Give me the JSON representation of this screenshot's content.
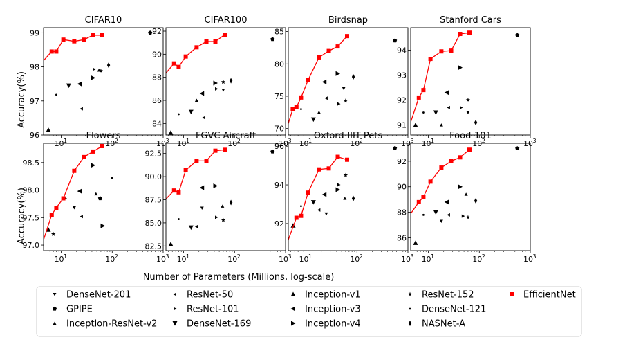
{
  "figure": {
    "xlabel": "Number of Parameters (Millions, log-scale)",
    "ylabel": "Accuracy(%)"
  },
  "legend": [
    {
      "name": "DenseNet-201",
      "marker": "tri-down"
    },
    {
      "name": "GPIPE",
      "marker": "pentagon"
    },
    {
      "name": "Inception-ResNet-v2",
      "marker": "tri-up"
    },
    {
      "name": "ResNet-50",
      "marker": "tri-left"
    },
    {
      "name": "ResNet-101",
      "marker": "tri-right"
    },
    {
      "name": "DenseNet-169",
      "marker": "triangle-down"
    },
    {
      "name": "Inception-v1",
      "marker": "triangle-up"
    },
    {
      "name": "Inception-v3",
      "marker": "triangle-left"
    },
    {
      "name": "Inception-v4",
      "marker": "triangle-right"
    },
    {
      "name": "ResNet-152",
      "marker": "star"
    },
    {
      "name": "DenseNet-121",
      "marker": "point"
    },
    {
      "name": "NASNet-A",
      "marker": "thin-diamond"
    },
    {
      "name": "EfficientNet",
      "marker": "square",
      "color": "#ff0000"
    }
  ],
  "chart_data": [
    {
      "type": "scatter",
      "title": "CIFAR10",
      "xscale": "log",
      "xlim": [
        4.5,
        1000
      ],
      "ylim": [
        96.0,
        99.15
      ],
      "xticks": [
        {
          "v": 10,
          "l": "10"
        },
        {
          "v": 100,
          "l": "10"
        },
        {
          "v": 1000,
          "l": "10"
        }
      ],
      "xtick_exp": [
        "1",
        "2",
        "3"
      ],
      "yticks": [
        {
          "v": 96,
          "l": "96"
        },
        {
          "v": 97,
          "l": "97"
        },
        {
          "v": 98,
          "l": "98"
        },
        {
          "v": 99,
          "l": "99"
        }
      ],
      "efficientnet": [
        [
          4.0,
          98.1
        ],
        [
          6.5,
          98.45
        ],
        [
          8.0,
          98.45
        ],
        [
          11.0,
          98.8
        ],
        [
          18.0,
          98.75
        ],
        [
          28.0,
          98.8
        ],
        [
          42.0,
          98.93
        ],
        [
          64.0,
          98.93
        ]
      ],
      "points": [
        {
          "model": "Inception-v1",
          "x": 5.6,
          "y": 96.15
        },
        {
          "model": "DenseNet-121",
          "x": 8.0,
          "y": 97.18
        },
        {
          "model": "DenseNet-169",
          "x": 14.0,
          "y": 97.45
        },
        {
          "model": "Inception-v3",
          "x": 23.0,
          "y": 97.5
        },
        {
          "model": "ResNet-50",
          "x": 25.0,
          "y": 96.77
        },
        {
          "model": "ResNet-101",
          "x": 44.0,
          "y": 97.93
        },
        {
          "model": "Inception-ResNet-v2",
          "x": 55.0,
          "y": 97.9
        },
        {
          "model": "ResNet-152",
          "x": 60.0,
          "y": 97.88
        },
        {
          "model": "Inception-v4",
          "x": 42.0,
          "y": 97.68
        },
        {
          "model": "NASNet-A",
          "x": 85.0,
          "y": 98.05
        },
        {
          "model": "GPIPE",
          "x": 556.0,
          "y": 99.0
        }
      ]
    },
    {
      "type": "scatter",
      "title": "CIFAR100",
      "xscale": "log",
      "xlim": [
        4.5,
        1000
      ],
      "ylim": [
        83.0,
        92.3
      ],
      "xticks": [
        {
          "v": 10,
          "l": "10"
        },
        {
          "v": 100,
          "l": "10"
        },
        {
          "v": 1000,
          "l": "10"
        }
      ],
      "xtick_exp": [
        "1",
        "2",
        "3"
      ],
      "yticks": [
        {
          "v": 84,
          "l": "84"
        },
        {
          "v": 86,
          "l": "86"
        },
        {
          "v": 88,
          "l": "88"
        },
        {
          "v": 90,
          "l": "90"
        },
        {
          "v": 92,
          "l": "92"
        }
      ],
      "efficientnet": [
        [
          4.0,
          88.1
        ],
        [
          6.5,
          89.2
        ],
        [
          8.0,
          88.9
        ],
        [
          11.0,
          89.8
        ],
        [
          18.0,
          90.6
        ],
        [
          28.0,
          91.1
        ],
        [
          42.0,
          91.1
        ],
        [
          64.0,
          91.7
        ]
      ],
      "points": [
        {
          "model": "Inception-v1",
          "x": 5.6,
          "y": 83.2
        },
        {
          "model": "DenseNet-121",
          "x": 8.0,
          "y": 84.8
        },
        {
          "model": "DenseNet-169",
          "x": 14.0,
          "y": 85.0
        },
        {
          "model": "Inception-ResNet-v2",
          "x": 18.0,
          "y": 86.0
        },
        {
          "model": "Inception-v3",
          "x": 23.0,
          "y": 86.6
        },
        {
          "model": "ResNet-50",
          "x": 25.0,
          "y": 84.5
        },
        {
          "model": "ResNet-101",
          "x": 44.0,
          "y": 87.0
        },
        {
          "model": "Inception-v4",
          "x": 42.0,
          "y": 87.5
        },
        {
          "model": "ResNet-152",
          "x": 60.0,
          "y": 87.6
        },
        {
          "model": "DenseNet-201",
          "x": 60.0,
          "y": 86.9
        },
        {
          "model": "NASNet-A",
          "x": 85.0,
          "y": 87.7
        },
        {
          "model": "GPIPE",
          "x": 556.0,
          "y": 91.3
        }
      ]
    },
    {
      "type": "scatter",
      "title": "Birdsnap",
      "xscale": "log",
      "xlim": [
        4.5,
        1000
      ],
      "ylim": [
        69.0,
        85.6
      ],
      "xticks": [
        {
          "v": 10,
          "l": "10"
        },
        {
          "v": 100,
          "l": "10"
        },
        {
          "v": 1000,
          "l": "10"
        }
      ],
      "xtick_exp": [
        "1",
        "2",
        "3"
      ],
      "yticks": [
        {
          "v": 70,
          "l": "70"
        },
        {
          "v": 75,
          "l": "75"
        },
        {
          "v": 80,
          "l": "80"
        },
        {
          "v": 85,
          "l": "85"
        }
      ],
      "efficientnet": [
        [
          4.0,
          69.5
        ],
        [
          5.5,
          73.0
        ],
        [
          6.5,
          73.3
        ],
        [
          8.0,
          74.8
        ],
        [
          11.0,
          77.5
        ],
        [
          18.0,
          81.0
        ],
        [
          28.0,
          82.0
        ],
        [
          42.0,
          82.7
        ],
        [
          64.0,
          84.3
        ]
      ],
      "points": [
        {
          "model": "Inception-v1",
          "x": 5.6,
          "y": 73.0
        },
        {
          "model": "DenseNet-121",
          "x": 8.0,
          "y": 73.0
        },
        {
          "model": "DenseNet-169",
          "x": 14.0,
          "y": 71.4
        },
        {
          "model": "ResNet-50",
          "x": 25.0,
          "y": 74.7
        },
        {
          "model": "Inception-v3",
          "x": 23.0,
          "y": 77.2
        },
        {
          "model": "Inception-ResNet-v2",
          "x": 18.0,
          "y": 72.5
        },
        {
          "model": "Inception-v4",
          "x": 42.0,
          "y": 78.5
        },
        {
          "model": "ResNet-101",
          "x": 44.0,
          "y": 73.8
        },
        {
          "model": "DenseNet-201",
          "x": 55.0,
          "y": 76.2
        },
        {
          "model": "ResNet-152",
          "x": 60.0,
          "y": 74.3
        },
        {
          "model": "NASNet-A",
          "x": 85.0,
          "y": 78.0
        },
        {
          "model": "GPIPE",
          "x": 556.0,
          "y": 83.6
        }
      ]
    },
    {
      "type": "scatter",
      "title": "Stanford Cars",
      "xscale": "log",
      "xlim": [
        4.5,
        1000
      ],
      "ylim": [
        90.6,
        94.9
      ],
      "xticks": [
        {
          "v": 10,
          "l": "10"
        },
        {
          "v": 100,
          "l": "10"
        },
        {
          "v": 1000,
          "l": "10"
        }
      ],
      "xtick_exp": [
        "1",
        "2",
        "3"
      ],
      "yticks": [
        {
          "v": 91,
          "l": "91"
        },
        {
          "v": 92,
          "l": "92"
        },
        {
          "v": 93,
          "l": "93"
        },
        {
          "v": 94,
          "l": "94"
        }
      ],
      "efficientnet": [
        [
          4.0,
          90.8
        ],
        [
          6.5,
          92.1
        ],
        [
          8.0,
          92.4
        ],
        [
          11.0,
          93.65
        ],
        [
          18.0,
          93.95
        ],
        [
          28.0,
          93.98
        ],
        [
          42.0,
          94.65
        ],
        [
          64.0,
          94.7
        ]
      ],
      "points": [
        {
          "model": "Inception-v1",
          "x": 5.6,
          "y": 91.0
        },
        {
          "model": "DenseNet-121",
          "x": 8.0,
          "y": 91.5
        },
        {
          "model": "DenseNet-169",
          "x": 14.0,
          "y": 91.5
        },
        {
          "model": "ResNet-50",
          "x": 25.0,
          "y": 91.7
        },
        {
          "model": "Inception-v3",
          "x": 23.0,
          "y": 92.3
        },
        {
          "model": "Inception-ResNet-v2",
          "x": 18.0,
          "y": 91.0
        },
        {
          "model": "Inception-v4",
          "x": 42.0,
          "y": 93.3
        },
        {
          "model": "ResNet-101",
          "x": 44.0,
          "y": 91.7
        },
        {
          "model": "ResNet-152",
          "x": 60.0,
          "y": 92.0
        },
        {
          "model": "DenseNet-201",
          "x": 60.0,
          "y": 91.5
        },
        {
          "model": "NASNet-A",
          "x": 85.0,
          "y": 91.1
        },
        {
          "model": "GPIPE",
          "x": 556.0,
          "y": 94.6
        }
      ]
    },
    {
      "type": "scatter",
      "title": "Flowers",
      "xscale": "log",
      "xlim": [
        4.5,
        1000
      ],
      "ylim": [
        96.9,
        98.85
      ],
      "xticks": [
        {
          "v": 10,
          "l": "10"
        },
        {
          "v": 100,
          "l": "10"
        },
        {
          "v": 1000,
          "l": "10"
        }
      ],
      "xtick_exp": [
        "1",
        "2",
        "3"
      ],
      "yticks": [
        {
          "v": 97.0,
          "l": "97.0"
        },
        {
          "v": 97.5,
          "l": "97.5"
        },
        {
          "v": 98.0,
          "l": "98.0"
        },
        {
          "v": 98.5,
          "l": "98.5"
        }
      ],
      "efficientnet": [
        [
          4.0,
          96.95
        ],
        [
          6.5,
          97.55
        ],
        [
          8.0,
          97.68
        ],
        [
          11.0,
          97.85
        ],
        [
          18.0,
          98.35
        ],
        [
          28.0,
          98.6
        ],
        [
          42.0,
          98.7
        ],
        [
          64.0,
          98.8
        ]
      ],
      "points": [
        {
          "model": "Inception-v1",
          "x": 5.6,
          "y": 97.28
        },
        {
          "model": "ResNet-152",
          "x": 7.0,
          "y": 97.2
        },
        {
          "model": "ResNet-101",
          "x": 12.0,
          "y": 97.85
        },
        {
          "model": "DenseNet-201",
          "x": 18.0,
          "y": 97.68
        },
        {
          "model": "ResNet-50",
          "x": 25.0,
          "y": 97.52
        },
        {
          "model": "Inception-v3",
          "x": 23.0,
          "y": 97.98
        },
        {
          "model": "Inception-v4",
          "x": 42.0,
          "y": 98.45
        },
        {
          "model": "Inception-ResNet-v2",
          "x": 48.0,
          "y": 97.93
        },
        {
          "model": "GPIPE",
          "x": 58.0,
          "y": 97.85
        },
        {
          "model": "Inception-v4",
          "x": 65.0,
          "y": 97.35
        },
        {
          "model": "DenseNet-121",
          "x": 100.0,
          "y": 98.22
        }
      ]
    },
    {
      "type": "scatter",
      "title": "FGVC Aircraft",
      "xscale": "log",
      "xlim": [
        4.5,
        1000
      ],
      "ylim": [
        82.0,
        93.6
      ],
      "xticks": [
        {
          "v": 10,
          "l": "10"
        },
        {
          "v": 100,
          "l": "10"
        },
        {
          "v": 1000,
          "l": "10"
        }
      ],
      "xtick_exp": [
        "1",
        "2",
        "3"
      ],
      "yticks": [
        {
          "v": 82.5,
          "l": "82.5"
        },
        {
          "v": 85.0,
          "l": "85.0"
        },
        {
          "v": 87.5,
          "l": "87.5"
        },
        {
          "v": 90.0,
          "l": "90.0"
        },
        {
          "v": 92.5,
          "l": "92.5"
        }
      ],
      "efficientnet": [
        [
          4.0,
          87.3
        ],
        [
          6.5,
          88.5
        ],
        [
          8.0,
          88.3
        ],
        [
          11.0,
          90.7
        ],
        [
          18.0,
          91.7
        ],
        [
          28.0,
          91.7
        ],
        [
          42.0,
          92.8
        ],
        [
          64.0,
          92.9
        ]
      ],
      "points": [
        {
          "model": "Inception-v1",
          "x": 5.6,
          "y": 82.7
        },
        {
          "model": "DenseNet-121",
          "x": 8.0,
          "y": 85.4
        },
        {
          "model": "DenseNet-169",
          "x": 14.0,
          "y": 84.5
        },
        {
          "model": "ResNet-50",
          "x": 18.0,
          "y": 84.6
        },
        {
          "model": "Inception-v3",
          "x": 23.0,
          "y": 88.8
        },
        {
          "model": "DenseNet-201",
          "x": 23.0,
          "y": 86.6
        },
        {
          "model": "Inception-v4",
          "x": 42.0,
          "y": 89.0
        },
        {
          "model": "ResNet-101",
          "x": 44.0,
          "y": 85.6
        },
        {
          "model": "ResNet-152",
          "x": 60.0,
          "y": 85.3
        },
        {
          "model": "Inception-ResNet-v2",
          "x": 58.0,
          "y": 86.8
        },
        {
          "model": "NASNet-A",
          "x": 85.0,
          "y": 87.2
        },
        {
          "model": "GPIPE",
          "x": 556.0,
          "y": 92.7
        }
      ]
    },
    {
      "type": "scatter",
      "title": "Oxford-IIIT Pets",
      "xscale": "log",
      "xlim": [
        4.5,
        1000
      ],
      "ylim": [
        90.6,
        96.15
      ],
      "xticks": [
        {
          "v": 10,
          "l": "10"
        },
        {
          "v": 100,
          "l": "10"
        },
        {
          "v": 1000,
          "l": "10"
        }
      ],
      "xtick_exp": [
        "1",
        "2",
        "3"
      ],
      "yticks": [
        {
          "v": 92,
          "l": "92"
        },
        {
          "v": 94,
          "l": "94"
        },
        {
          "v": 96,
          "l": "96"
        }
      ],
      "efficientnet": [
        [
          4.0,
          90.8
        ],
        [
          6.5,
          92.3
        ],
        [
          8.0,
          92.4
        ],
        [
          11.0,
          93.6
        ],
        [
          18.0,
          94.8
        ],
        [
          28.0,
          94.85
        ],
        [
          42.0,
          95.45
        ],
        [
          64.0,
          95.3
        ]
      ],
      "points": [
        {
          "model": "Inception-v1",
          "x": 5.6,
          "y": 91.9
        },
        {
          "model": "DenseNet-121",
          "x": 8.0,
          "y": 92.9
        },
        {
          "model": "DenseNet-169",
          "x": 14.0,
          "y": 93.1
        },
        {
          "model": "ResNet-50",
          "x": 18.0,
          "y": 92.7
        },
        {
          "model": "Inception-v3",
          "x": 23.0,
          "y": 93.5
        },
        {
          "model": "DenseNet-201",
          "x": 25.0,
          "y": 92.5
        },
        {
          "model": "Inception-v4",
          "x": 42.0,
          "y": 93.75
        },
        {
          "model": "ResNet-101",
          "x": 44.0,
          "y": 94.0
        },
        {
          "model": "ResNet-152",
          "x": 60.0,
          "y": 94.5
        },
        {
          "model": "Inception-ResNet-v2",
          "x": 58.0,
          "y": 93.3
        },
        {
          "model": "NASNet-A",
          "x": 85.0,
          "y": 93.3
        },
        {
          "model": "GPIPE",
          "x": 556.0,
          "y": 95.9
        }
      ]
    },
    {
      "type": "scatter",
      "title": "Food-101",
      "xscale": "log",
      "xlim": [
        4.5,
        1000
      ],
      "ylim": [
        85.0,
        93.4
      ],
      "xticks": [
        {
          "v": 10,
          "l": "10"
        },
        {
          "v": 100,
          "l": "10"
        },
        {
          "v": 1000,
          "l": "10"
        }
      ],
      "xtick_exp": [
        "1",
        "2",
        "3"
      ],
      "yticks": [
        {
          "v": 86,
          "l": "86"
        },
        {
          "v": 88,
          "l": "88"
        },
        {
          "v": 90,
          "l": "90"
        },
        {
          "v": 92,
          "l": "92"
        }
      ],
      "efficientnet": [
        [
          4.0,
          87.6
        ],
        [
          6.5,
          88.8
        ],
        [
          8.0,
          89.2
        ],
        [
          11.0,
          90.4
        ],
        [
          18.0,
          91.5
        ],
        [
          28.0,
          92.0
        ],
        [
          42.0,
          92.3
        ],
        [
          64.0,
          92.9
        ]
      ],
      "points": [
        {
          "model": "Inception-v1",
          "x": 5.6,
          "y": 85.6
        },
        {
          "model": "DenseNet-121",
          "x": 8.0,
          "y": 87.8
        },
        {
          "model": "DenseNet-169",
          "x": 14.0,
          "y": 88.0
        },
        {
          "model": "DenseNet-201",
          "x": 18.0,
          "y": 87.3
        },
        {
          "model": "ResNet-50",
          "x": 25.0,
          "y": 87.8
        },
        {
          "model": "Inception-v3",
          "x": 23.0,
          "y": 88.8
        },
        {
          "model": "Inception-v4",
          "x": 42.0,
          "y": 90.0
        },
        {
          "model": "Inception-ResNet-v2",
          "x": 55.0,
          "y": 89.4
        },
        {
          "model": "ResNet-101",
          "x": 48.0,
          "y": 87.7
        },
        {
          "model": "ResNet-152",
          "x": 60.0,
          "y": 87.6
        },
        {
          "model": "NASNet-A",
          "x": 85.0,
          "y": 88.9
        },
        {
          "model": "GPIPE",
          "x": 556.0,
          "y": 93.0
        }
      ]
    }
  ]
}
